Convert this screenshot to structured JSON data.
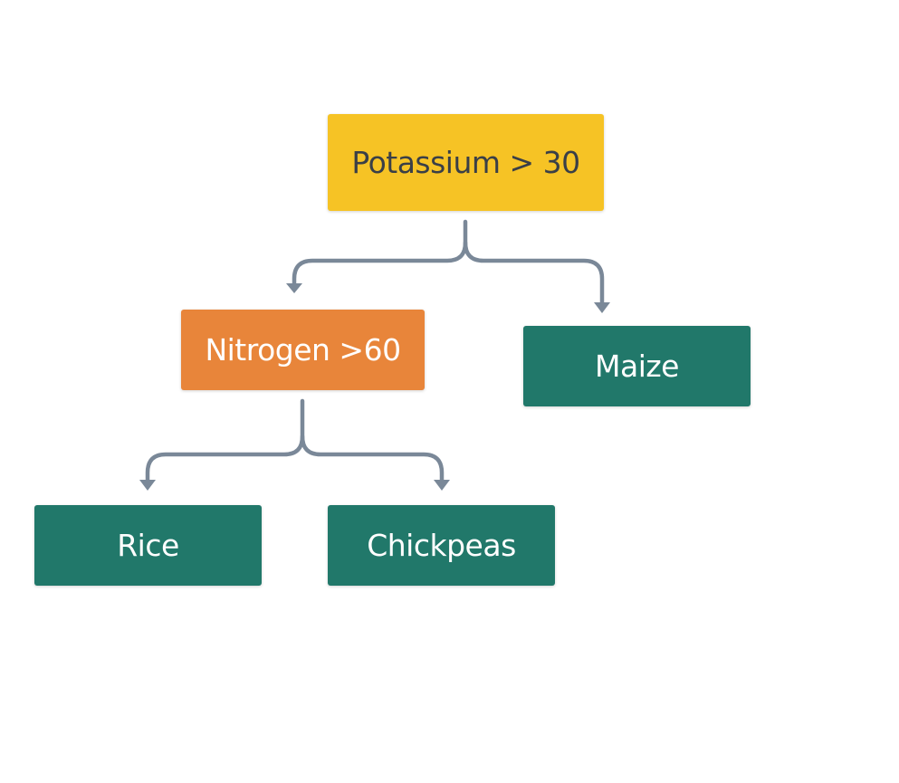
{
  "colors": {
    "decision_root": "#f6c325",
    "decision_inner": "#e8853a",
    "leaf": "#21786a",
    "connector": "#7a8898"
  },
  "tree": {
    "root": {
      "label": "Potassium > 30"
    },
    "nitrogen": {
      "label": "Nitrogen >60"
    },
    "maize": {
      "label": "Maize"
    },
    "rice": {
      "label": "Rice"
    },
    "chickpeas": {
      "label": "Chickpeas"
    }
  }
}
